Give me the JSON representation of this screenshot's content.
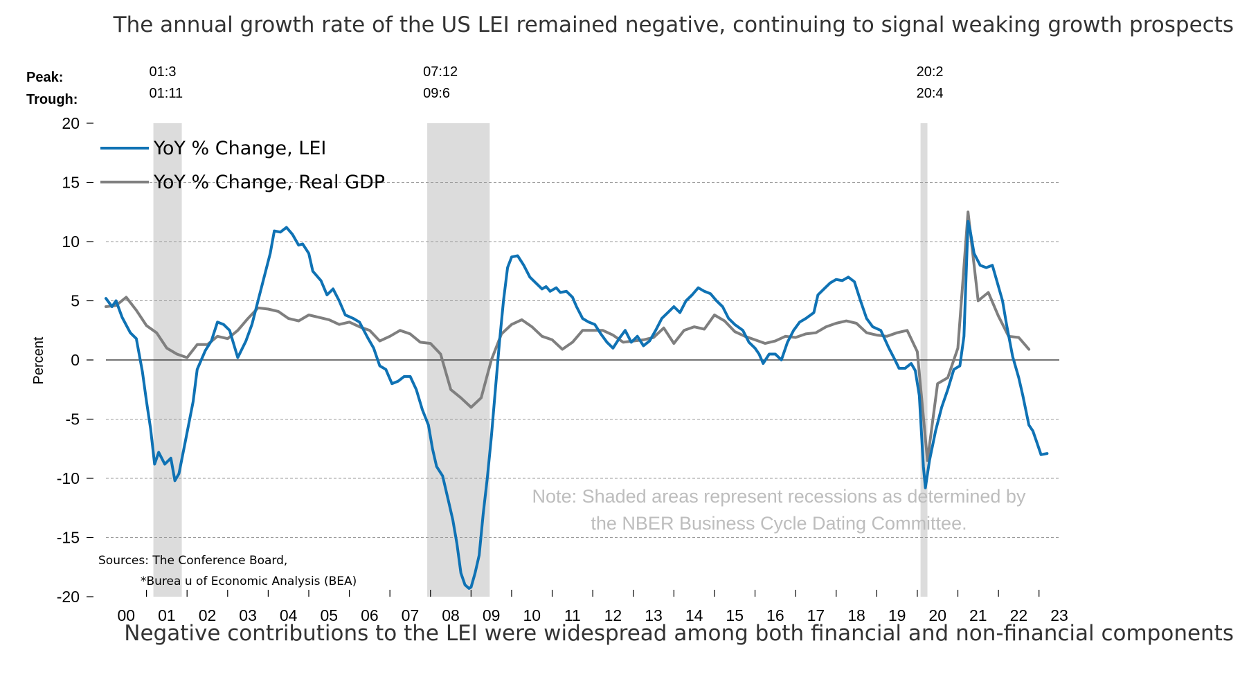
{
  "header_text": "The annual growth rate of the US LEI remained negative, continuing to signal weaking growth prospects",
  "footer_text": "Negative contributions to the LEI were widespread among both financial and non-financial components",
  "peak_label": "Peak:",
  "trough_label": "Trough:",
  "recessions": [
    {
      "peak": "01:3",
      "trough": "01:11",
      "start": 2001.17,
      "end": 2001.87
    },
    {
      "peak": "07:12",
      "trough": "09:6",
      "start": 2007.92,
      "end": 2009.46
    },
    {
      "peak": "20:2",
      "trough": "20:4",
      "start": 2020.08,
      "end": 2020.25
    }
  ],
  "note_lines": [
    "Note: Shaded areas represent recessions as determined by",
    "the NBER Business Cycle Dating Committee."
  ],
  "source_lines": [
    "Sources: The Conference Board,",
    "*Burea u of Economic Analysis (BEA)"
  ],
  "colors": {
    "lei": "#0f72b4",
    "gdp": "#7f7f7f",
    "recession": "#dcdcdc",
    "grid": "#9a9a9a"
  },
  "chart_data": {
    "type": "line",
    "ylabel": "Percent",
    "ylim": [
      -20,
      20
    ],
    "yticks": [
      20,
      15,
      10,
      5,
      0,
      -5,
      -10,
      -15,
      -20
    ],
    "xlim": [
      2000,
      2023.5
    ],
    "xticks": [
      {
        "label": "00",
        "x": 2000.5
      },
      {
        "label": "01",
        "x": 2001.5
      },
      {
        "label": "02",
        "x": 2002.5
      },
      {
        "label": "03",
        "x": 2003.5
      },
      {
        "label": "04",
        "x": 2004.5
      },
      {
        "label": "05",
        "x": 2005.5
      },
      {
        "label": "06",
        "x": 2006.5
      },
      {
        "label": "07",
        "x": 2007.5
      },
      {
        "label": "08",
        "x": 2008.5
      },
      {
        "label": "09",
        "x": 2009.5
      },
      {
        "label": "10",
        "x": 2010.5
      },
      {
        "label": "11",
        "x": 2011.5
      },
      {
        "label": "12",
        "x": 2012.5
      },
      {
        "label": "13",
        "x": 2013.5
      },
      {
        "label": "14",
        "x": 2014.5
      },
      {
        "label": "15",
        "x": 2015.5
      },
      {
        "label": "16",
        "x": 2016.5
      },
      {
        "label": "17",
        "x": 2017.5
      },
      {
        "label": "18",
        "x": 2018.5
      },
      {
        "label": "19",
        "x": 2019.5
      },
      {
        "label": "20",
        "x": 2020.5
      },
      {
        "label": "21",
        "x": 2021.5
      },
      {
        "label": "22",
        "x": 2022.5
      },
      {
        "label": "23",
        "x": 2023.5
      }
    ],
    "grid": "horizontal dashed",
    "legend_placement": "top-left",
    "series": [
      {
        "name": "YoY % Change, LEI",
        "points": [
          [
            2000.0,
            5.2
          ],
          [
            2000.15,
            4.5
          ],
          [
            2000.25,
            5.0
          ],
          [
            2000.4,
            3.6
          ],
          [
            2000.6,
            2.3
          ],
          [
            2000.75,
            1.8
          ],
          [
            2000.9,
            -1.0
          ],
          [
            2001.0,
            -3.5
          ],
          [
            2001.1,
            -5.8
          ],
          [
            2001.2,
            -8.8
          ],
          [
            2001.3,
            -7.8
          ],
          [
            2001.45,
            -8.8
          ],
          [
            2001.6,
            -8.3
          ],
          [
            2001.7,
            -10.2
          ],
          [
            2001.8,
            -9.6
          ],
          [
            2001.95,
            -7.0
          ],
          [
            2002.15,
            -3.5
          ],
          [
            2002.25,
            -0.8
          ],
          [
            2002.45,
            0.8
          ],
          [
            2002.6,
            1.6
          ],
          [
            2002.75,
            3.2
          ],
          [
            2002.9,
            3.0
          ],
          [
            2003.05,
            2.5
          ],
          [
            2003.25,
            0.2
          ],
          [
            2003.45,
            1.6
          ],
          [
            2003.6,
            3.0
          ],
          [
            2003.75,
            5.0
          ],
          [
            2003.9,
            7.0
          ],
          [
            2004.05,
            9.0
          ],
          [
            2004.15,
            10.9
          ],
          [
            2004.3,
            10.8
          ],
          [
            2004.45,
            11.2
          ],
          [
            2004.6,
            10.6
          ],
          [
            2004.75,
            9.7
          ],
          [
            2004.85,
            9.8
          ],
          [
            2005.0,
            9.0
          ],
          [
            2005.1,
            7.5
          ],
          [
            2005.3,
            6.7
          ],
          [
            2005.45,
            5.5
          ],
          [
            2005.6,
            6.0
          ],
          [
            2005.75,
            5.0
          ],
          [
            2005.9,
            3.8
          ],
          [
            2006.1,
            3.5
          ],
          [
            2006.25,
            3.2
          ],
          [
            2006.45,
            1.9
          ],
          [
            2006.6,
            1.0
          ],
          [
            2006.75,
            -0.5
          ],
          [
            2006.9,
            -0.8
          ],
          [
            2007.05,
            -2.0
          ],
          [
            2007.2,
            -1.8
          ],
          [
            2007.35,
            -1.4
          ],
          [
            2007.5,
            -1.4
          ],
          [
            2007.65,
            -2.5
          ],
          [
            2007.8,
            -4.2
          ],
          [
            2007.95,
            -5.5
          ],
          [
            2008.05,
            -7.5
          ],
          [
            2008.15,
            -9.0
          ],
          [
            2008.3,
            -9.8
          ],
          [
            2008.45,
            -12.0
          ],
          [
            2008.55,
            -13.5
          ],
          [
            2008.65,
            -15.5
          ],
          [
            2008.75,
            -18.0
          ],
          [
            2008.85,
            -19.0
          ],
          [
            2008.95,
            -19.3
          ],
          [
            2009.0,
            -19.2
          ],
          [
            2009.1,
            -18.0
          ],
          [
            2009.2,
            -16.5
          ],
          [
            2009.3,
            -13.0
          ],
          [
            2009.4,
            -10.0
          ],
          [
            2009.5,
            -6.5
          ],
          [
            2009.6,
            -2.5
          ],
          [
            2009.7,
            1.5
          ],
          [
            2009.8,
            5.0
          ],
          [
            2009.9,
            7.8
          ],
          [
            2010.0,
            8.7
          ],
          [
            2010.15,
            8.8
          ],
          [
            2010.3,
            8.0
          ],
          [
            2010.45,
            7.0
          ],
          [
            2010.6,
            6.5
          ],
          [
            2010.75,
            6.0
          ],
          [
            2010.85,
            6.2
          ],
          [
            2010.95,
            5.8
          ],
          [
            2011.1,
            6.1
          ],
          [
            2011.2,
            5.7
          ],
          [
            2011.35,
            5.8
          ],
          [
            2011.5,
            5.3
          ],
          [
            2011.6,
            4.5
          ],
          [
            2011.75,
            3.5
          ],
          [
            2011.9,
            3.2
          ],
          [
            2012.05,
            3.0
          ],
          [
            2012.2,
            2.2
          ],
          [
            2012.35,
            1.5
          ],
          [
            2012.5,
            1.0
          ],
          [
            2012.65,
            1.8
          ],
          [
            2012.8,
            2.5
          ],
          [
            2012.95,
            1.5
          ],
          [
            2013.1,
            2.0
          ],
          [
            2013.25,
            1.2
          ],
          [
            2013.4,
            1.6
          ],
          [
            2013.55,
            2.5
          ],
          [
            2013.7,
            3.5
          ],
          [
            2013.85,
            4.0
          ],
          [
            2014.0,
            4.5
          ],
          [
            2014.15,
            4.0
          ],
          [
            2014.3,
            5.0
          ],
          [
            2014.45,
            5.5
          ],
          [
            2014.6,
            6.1
          ],
          [
            2014.75,
            5.8
          ],
          [
            2014.9,
            5.6
          ],
          [
            2015.05,
            5.0
          ],
          [
            2015.2,
            4.5
          ],
          [
            2015.35,
            3.5
          ],
          [
            2015.5,
            3.0
          ],
          [
            2015.7,
            2.5
          ],
          [
            2015.85,
            1.5
          ],
          [
            2016.0,
            1.0
          ],
          [
            2016.1,
            0.5
          ],
          [
            2016.2,
            -0.3
          ],
          [
            2016.35,
            0.5
          ],
          [
            2016.5,
            0.5
          ],
          [
            2016.65,
            0.0
          ],
          [
            2016.8,
            1.5
          ],
          [
            2016.95,
            2.5
          ],
          [
            2017.1,
            3.2
          ],
          [
            2017.25,
            3.5
          ],
          [
            2017.45,
            4.0
          ],
          [
            2017.55,
            5.5
          ],
          [
            2017.7,
            6.0
          ],
          [
            2017.85,
            6.5
          ],
          [
            2018.0,
            6.8
          ],
          [
            2018.15,
            6.7
          ],
          [
            2018.3,
            7.0
          ],
          [
            2018.45,
            6.6
          ],
          [
            2018.6,
            5.0
          ],
          [
            2018.75,
            3.5
          ],
          [
            2018.9,
            2.8
          ],
          [
            2019.1,
            2.5
          ],
          [
            2019.3,
            1.0
          ],
          [
            2019.45,
            0.0
          ],
          [
            2019.55,
            -0.7
          ],
          [
            2019.7,
            -0.7
          ],
          [
            2019.85,
            -0.3
          ],
          [
            2019.95,
            -0.9
          ],
          [
            2020.05,
            -3.0
          ],
          [
            2020.15,
            -9.0
          ],
          [
            2020.2,
            -10.8
          ],
          [
            2020.3,
            -8.5
          ],
          [
            2020.45,
            -6.0
          ],
          [
            2020.6,
            -4.0
          ],
          [
            2020.75,
            -2.5
          ],
          [
            2020.9,
            -0.8
          ],
          [
            2021.05,
            -0.5
          ],
          [
            2021.15,
            2.0
          ],
          [
            2021.25,
            11.7
          ],
          [
            2021.3,
            11.0
          ],
          [
            2021.4,
            9.0
          ],
          [
            2021.55,
            8.0
          ],
          [
            2021.7,
            7.8
          ],
          [
            2021.85,
            8.0
          ],
          [
            2021.95,
            6.8
          ],
          [
            2022.1,
            5.0
          ],
          [
            2022.2,
            3.0
          ],
          [
            2022.35,
            0.3
          ],
          [
            2022.5,
            -1.5
          ],
          [
            2022.6,
            -3.0
          ],
          [
            2022.75,
            -5.5
          ],
          [
            2022.85,
            -6.0
          ],
          [
            2022.95,
            -7.0
          ],
          [
            2023.05,
            -8.0
          ],
          [
            2023.2,
            -7.9
          ]
        ]
      },
      {
        "name": "YoY % Change, Real GDP",
        "points": [
          [
            2000.0,
            4.5
          ],
          [
            2000.25,
            4.6
          ],
          [
            2000.5,
            5.3
          ],
          [
            2000.75,
            4.2
          ],
          [
            2001.0,
            2.9
          ],
          [
            2001.25,
            2.3
          ],
          [
            2001.5,
            1.0
          ],
          [
            2001.75,
            0.5
          ],
          [
            2002.0,
            0.2
          ],
          [
            2002.25,
            1.3
          ],
          [
            2002.5,
            1.3
          ],
          [
            2002.75,
            2.0
          ],
          [
            2003.0,
            1.8
          ],
          [
            2003.25,
            2.5
          ],
          [
            2003.5,
            3.5
          ],
          [
            2003.75,
            4.4
          ],
          [
            2004.0,
            4.3
          ],
          [
            2004.25,
            4.1
          ],
          [
            2004.5,
            3.5
          ],
          [
            2004.75,
            3.3
          ],
          [
            2005.0,
            3.8
          ],
          [
            2005.25,
            3.6
          ],
          [
            2005.5,
            3.4
          ],
          [
            2005.75,
            3.0
          ],
          [
            2006.0,
            3.2
          ],
          [
            2006.25,
            2.8
          ],
          [
            2006.5,
            2.5
          ],
          [
            2006.75,
            1.6
          ],
          [
            2007.0,
            2.0
          ],
          [
            2007.25,
            2.5
          ],
          [
            2007.5,
            2.2
          ],
          [
            2007.75,
            1.5
          ],
          [
            2008.0,
            1.4
          ],
          [
            2008.25,
            0.5
          ],
          [
            2008.5,
            -2.5
          ],
          [
            2008.75,
            -3.2
          ],
          [
            2009.0,
            -4.0
          ],
          [
            2009.25,
            -3.2
          ],
          [
            2009.5,
            0.0
          ],
          [
            2009.75,
            2.2
          ],
          [
            2010.0,
            3.0
          ],
          [
            2010.25,
            3.4
          ],
          [
            2010.5,
            2.8
          ],
          [
            2010.75,
            2.0
          ],
          [
            2011.0,
            1.7
          ],
          [
            2011.25,
            0.9
          ],
          [
            2011.5,
            1.5
          ],
          [
            2011.75,
            2.5
          ],
          [
            2012.0,
            2.5
          ],
          [
            2012.25,
            2.5
          ],
          [
            2012.5,
            2.1
          ],
          [
            2012.75,
            1.5
          ],
          [
            2013.0,
            1.6
          ],
          [
            2013.25,
            1.7
          ],
          [
            2013.5,
            1.9
          ],
          [
            2013.75,
            2.7
          ],
          [
            2014.0,
            1.4
          ],
          [
            2014.25,
            2.5
          ],
          [
            2014.5,
            2.8
          ],
          [
            2014.75,
            2.6
          ],
          [
            2015.0,
            3.8
          ],
          [
            2015.25,
            3.3
          ],
          [
            2015.5,
            2.4
          ],
          [
            2015.75,
            2.0
          ],
          [
            2016.0,
            1.7
          ],
          [
            2016.25,
            1.4
          ],
          [
            2016.5,
            1.6
          ],
          [
            2016.75,
            2.0
          ],
          [
            2017.0,
            1.9
          ],
          [
            2017.25,
            2.2
          ],
          [
            2017.5,
            2.3
          ],
          [
            2017.75,
            2.8
          ],
          [
            2018.0,
            3.1
          ],
          [
            2018.25,
            3.3
          ],
          [
            2018.5,
            3.1
          ],
          [
            2018.75,
            2.3
          ],
          [
            2019.0,
            2.1
          ],
          [
            2019.25,
            2.0
          ],
          [
            2019.5,
            2.3
          ],
          [
            2019.75,
            2.5
          ],
          [
            2020.0,
            0.7
          ],
          [
            2020.25,
            -8.5
          ],
          [
            2020.5,
            -2.0
          ],
          [
            2020.75,
            -1.5
          ],
          [
            2021.0,
            1.0
          ],
          [
            2021.25,
            12.5
          ],
          [
            2021.5,
            5.0
          ],
          [
            2021.75,
            5.7
          ],
          [
            2022.0,
            3.7
          ],
          [
            2022.25,
            2.0
          ],
          [
            2022.5,
            1.9
          ],
          [
            2022.75,
            0.9
          ]
        ]
      }
    ]
  }
}
